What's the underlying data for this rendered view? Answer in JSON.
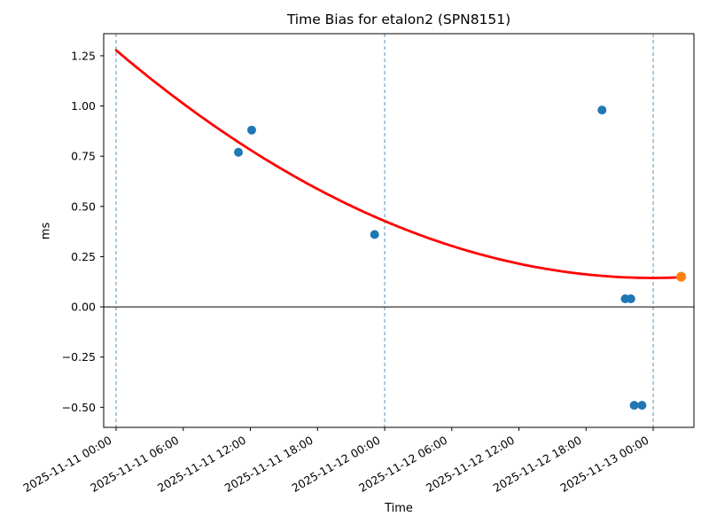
{
  "chart_data": {
    "type": "scatter",
    "title": "Time Bias for etalon2 (SPN8151)",
    "xlabel": "Time",
    "ylabel": "ms",
    "grid": "vertical-day-lines-only",
    "legend": "none",
    "x_axis": {
      "unit": "datetime",
      "epoch": "2025-11-11 00:00",
      "min_hours": -1.11,
      "max_hours": 51.64,
      "ticks": [
        {
          "t_hours": 0,
          "label": "2025-11-11 00:00"
        },
        {
          "t_hours": 6,
          "label": "2025-11-11 06:00"
        },
        {
          "t_hours": 12,
          "label": "2025-11-11 12:00"
        },
        {
          "t_hours": 18,
          "label": "2025-11-11 18:00"
        },
        {
          "t_hours": 24,
          "label": "2025-11-12 00:00"
        },
        {
          "t_hours": 30,
          "label": "2025-11-12 06:00"
        },
        {
          "t_hours": 36,
          "label": "2025-11-12 12:00"
        },
        {
          "t_hours": 42,
          "label": "2025-11-12 18:00"
        },
        {
          "t_hours": 48,
          "label": "2025-11-13 00:00"
        }
      ],
      "tick_label_rotation_deg": 30,
      "day_gridlines_hours": [
        0,
        24,
        48
      ]
    },
    "y_axis": {
      "min": -0.6,
      "max": 1.36,
      "ticks": [
        {
          "value": -0.5,
          "label": "−0.50"
        },
        {
          "value": -0.25,
          "label": "−0.25"
        },
        {
          "value": 0.0,
          "label": "0.00"
        },
        {
          "value": 0.25,
          "label": "0.25"
        },
        {
          "value": 0.5,
          "label": "0.50"
        },
        {
          "value": 0.75,
          "label": "0.75"
        },
        {
          "value": 1.0,
          "label": "1.00"
        },
        {
          "value": 1.25,
          "label": "1.25"
        }
      ]
    },
    "zero_line": true,
    "series": [
      {
        "name": "bias-measurements",
        "type": "scatter",
        "color": "#1f77b4",
        "marker_radius": 5,
        "points": [
          {
            "time": "2025-11-11 10:55",
            "t_hours": 10.93,
            "value": 0.77
          },
          {
            "time": "2025-11-11 12:05",
            "t_hours": 12.12,
            "value": 0.88
          },
          {
            "time": "2025-11-11 23:05",
            "t_hours": 23.1,
            "value": 0.36
          },
          {
            "time": "2025-11-12 19:25",
            "t_hours": 43.43,
            "value": 0.98
          },
          {
            "time": "2025-11-12 21:30",
            "t_hours": 45.5,
            "value": 0.04
          },
          {
            "time": "2025-11-12 22:00",
            "t_hours": 46.0,
            "value": 0.04
          },
          {
            "time": "2025-11-12 22:20",
            "t_hours": 46.3,
            "value": -0.49
          },
          {
            "time": "2025-11-12 23:00",
            "t_hours": 47.0,
            "value": -0.49
          }
        ]
      },
      {
        "name": "latest-measurement",
        "type": "scatter",
        "color": "#ff7f0e",
        "marker_radius": 5.5,
        "points": [
          {
            "time": "2025-11-13 02:30",
            "t_hours": 50.5,
            "value": 0.15
          }
        ]
      },
      {
        "name": "trend-fit",
        "type": "line",
        "color": "#ff0000",
        "line_width": 2.8,
        "quadratic": {
          "a": 0.000492,
          "vertex_t_hours": 48,
          "vertex_value": 0.144,
          "t_start": 0,
          "t_end": 50.5
        }
      }
    ],
    "style": {
      "point_color": "#1f77b4",
      "latest_point_color": "#ff7f0e",
      "trend_color": "#ff0000",
      "day_gridline_color": "#5b93b8",
      "axis_color": "#000000",
      "background": "#ffffff"
    }
  }
}
